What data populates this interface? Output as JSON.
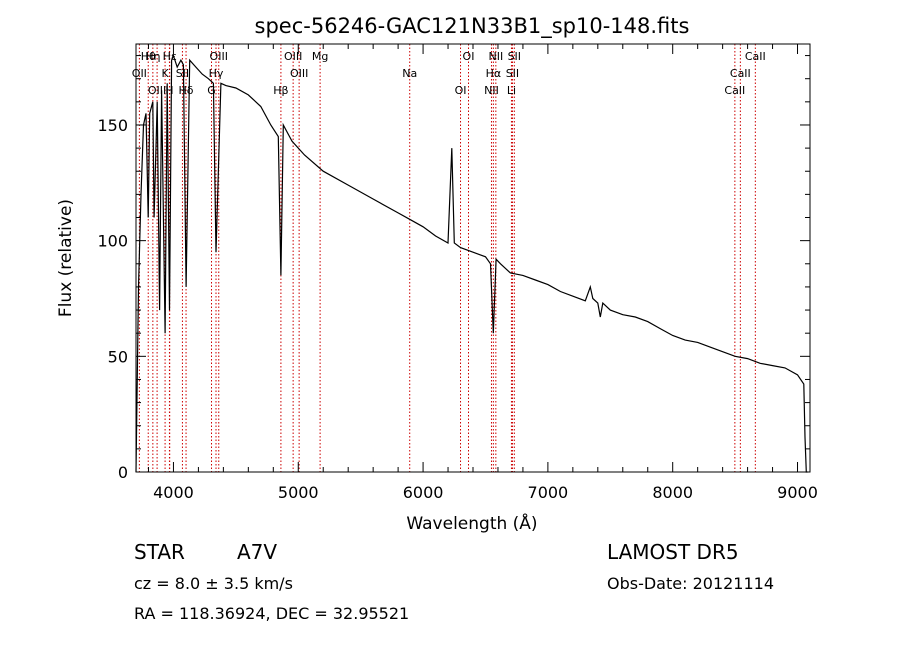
{
  "chart_data": {
    "type": "line",
    "title": "spec-56246-GAC121N33B1_sp10-148.fits",
    "xlabel": "Wavelength (Å)",
    "ylabel": "Flux (relative)",
    "xlim": [
      3700,
      9100
    ],
    "ylim": [
      0,
      185
    ],
    "xticks": [
      4000,
      5000,
      6000,
      7000,
      8000,
      9000
    ],
    "yticks": [
      0,
      50,
      100,
      150
    ],
    "grid": false,
    "series": [
      {
        "x": [
          3700,
          3720,
          3740,
          3760,
          3780,
          3798,
          3810,
          3835,
          3845,
          3870,
          3889,
          3905,
          3933,
          3950,
          3968,
          3985,
          4000,
          4030,
          4060,
          4080,
          4101,
          4130,
          4180,
          4230,
          4280,
          4320,
          4341,
          4380,
          4420,
          4500,
          4600,
          4700,
          4780,
          4840,
          4861,
          4880,
          4950,
          5050,
          5200,
          5400,
          5600,
          5800,
          5900,
          6000,
          6100,
          6200,
          6230,
          6250,
          6300,
          6400,
          6500,
          6540,
          6563,
          6585,
          6620,
          6700,
          6800,
          6900,
          7000,
          7100,
          7200,
          7300,
          7340,
          7360,
          7400,
          7420,
          7440,
          7500,
          7600,
          7700,
          7800,
          7900,
          8000,
          8100,
          8200,
          8300,
          8400,
          8500,
          8600,
          8700,
          8800,
          8900,
          9000,
          9050,
          9060,
          9070,
          9080
        ],
        "y": [
          0,
          80,
          120,
          150,
          155,
          110,
          155,
          160,
          110,
          160,
          70,
          165,
          60,
          168,
          70,
          178,
          180,
          175,
          178,
          176,
          80,
          178,
          175,
          172,
          170,
          168,
          95,
          168,
          167,
          166,
          163,
          158,
          150,
          145,
          85,
          150,
          143,
          137,
          130,
          124,
          118,
          112,
          109,
          106,
          102,
          99,
          140,
          99,
          97,
          95,
          93,
          90,
          60,
          92,
          90,
          86,
          85,
          83,
          81,
          78,
          76,
          74,
          80,
          75,
          73,
          67,
          73,
          70,
          68,
          67,
          65,
          62,
          59,
          57,
          56,
          54,
          52,
          50,
          49,
          47,
          46,
          45,
          42,
          38,
          15,
          0,
          0
        ]
      }
    ],
    "annotations": [
      {
        "label": "Hθ",
        "wavelength": 3798
      },
      {
        "label": "OII",
        "wavelength": 3727
      },
      {
        "label": "OIII",
        "wavelength": 3869
      },
      {
        "label": "Hη",
        "wavelength": 3835
      },
      {
        "label": "K",
        "wavelength": 3933
      },
      {
        "label": "H",
        "wavelength": 3968
      },
      {
        "label": "Hε",
        "wavelength": 3970
      },
      {
        "label": "SII",
        "wavelength": 4072
      },
      {
        "label": "Hδ",
        "wavelength": 4101
      },
      {
        "label": "OIII",
        "wavelength": 4363
      },
      {
        "label": "Hγ",
        "wavelength": 4341
      },
      {
        "label": "G",
        "wavelength": 4305
      },
      {
        "label": "OIII",
        "wavelength": 4959
      },
      {
        "label": "OIII",
        "wavelength": 5007
      },
      {
        "label": "Hβ",
        "wavelength": 4861
      },
      {
        "label": "Mg",
        "wavelength": 5175
      },
      {
        "label": "Na",
        "wavelength": 5893
      },
      {
        "label": "OI",
        "wavelength": 6300
      },
      {
        "label": "OI",
        "wavelength": 6364
      },
      {
        "label": "Hα",
        "wavelength": 6563
      },
      {
        "label": "NII",
        "wavelength": 6548
      },
      {
        "label": "NII",
        "wavelength": 6583
      },
      {
        "label": "SII",
        "wavelength": 6716
      },
      {
        "label": "Li",
        "wavelength": 6708
      },
      {
        "label": "SII",
        "wavelength": 6731
      },
      {
        "label": "CaII",
        "wavelength": 8542
      },
      {
        "label": "CaII",
        "wavelength": 8498
      },
      {
        "label": "CaII",
        "wavelength": 8662
      }
    ]
  },
  "info": {
    "object_type": "STAR",
    "subclass": "A7V",
    "survey": "LAMOST DR5",
    "redshift": "cz = 8.0 ± 3.5 km/s",
    "obs_date": "Obs-Date: 20121114",
    "coords": "RA = 118.36924, DEC =  32.95521"
  },
  "colors": {
    "spectrum": "#000000",
    "line_markers": "#cc0000",
    "axes": "#000000",
    "background": "#ffffff"
  }
}
